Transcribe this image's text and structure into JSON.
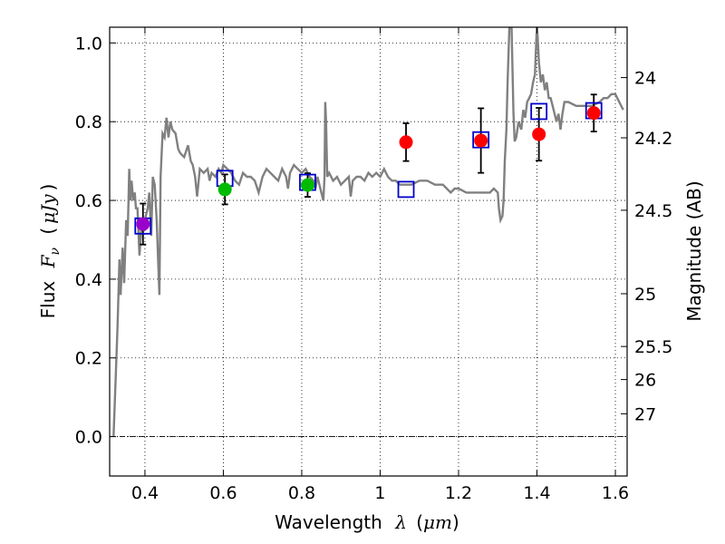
{
  "chart_data": {
    "type": "scatter",
    "title": "",
    "xlabel": {
      "text": "Wavelength",
      "symbol": "λ",
      "open": "(",
      "unit": "μm",
      "close": ")"
    },
    "ylabel": {
      "text": "Flux",
      "symbol": "F",
      "subscript": "ν",
      "open": "(",
      "unit": "μJy",
      "close": ")"
    },
    "y2label": "Magnitude (AB)",
    "xlim": [
      0.31,
      1.63
    ],
    "ylim": [
      -0.1,
      1.04
    ],
    "grid": true,
    "x_ticks": [
      {
        "value": 0.4,
        "label": "0.4"
      },
      {
        "value": 0.6,
        "label": "0.6"
      },
      {
        "value": 0.8,
        "label": "0.8"
      },
      {
        "value": 1.0,
        "label": "1"
      },
      {
        "value": 1.2,
        "label": "1.2"
      },
      {
        "value": 1.4,
        "label": "1.4"
      },
      {
        "value": 1.6,
        "label": "1.6"
      }
    ],
    "y_ticks": [
      {
        "value": 0.0,
        "label": "0.0"
      },
      {
        "value": 0.2,
        "label": "0.2"
      },
      {
        "value": 0.4,
        "label": "0.4"
      },
      {
        "value": 0.6,
        "label": "0.6"
      },
      {
        "value": 0.8,
        "label": "0.8"
      },
      {
        "value": 1.0,
        "label": "1.0"
      }
    ],
    "mag_ticks": [
      {
        "label": "24",
        "flux": 0.912
      },
      {
        "label": "24.2",
        "flux": 0.759
      },
      {
        "label": "24.5",
        "flux": 0.575
      },
      {
        "label": "25",
        "flux": 0.363
      },
      {
        "label": "25.5",
        "flux": 0.229
      },
      {
        "label": "26",
        "flux": 0.145
      },
      {
        "label": "27",
        "flux": 0.058
      }
    ],
    "zero_line": 0.0,
    "model_spectrum": {
      "color": "#808080",
      "points": [
        [
          0.32,
          0.0
        ],
        [
          0.33,
          0.28
        ],
        [
          0.335,
          0.45
        ],
        [
          0.338,
          0.36
        ],
        [
          0.343,
          0.48
        ],
        [
          0.347,
          0.39
        ],
        [
          0.352,
          0.55
        ],
        [
          0.356,
          0.51
        ],
        [
          0.36,
          0.68
        ],
        [
          0.363,
          0.6
        ],
        [
          0.366,
          0.65
        ],
        [
          0.37,
          0.6
        ],
        [
          0.374,
          0.62
        ],
        [
          0.377,
          0.58
        ],
        [
          0.381,
          0.58
        ],
        [
          0.386,
          0.46
        ],
        [
          0.39,
          0.52
        ],
        [
          0.394,
          0.54
        ],
        [
          0.398,
          0.53
        ],
        [
          0.402,
          0.56
        ],
        [
          0.407,
          0.58
        ],
        [
          0.411,
          0.62
        ],
        [
          0.416,
          0.51
        ],
        [
          0.42,
          0.66
        ],
        [
          0.425,
          0.64
        ],
        [
          0.43,
          0.55
        ],
        [
          0.434,
          0.44
        ],
        [
          0.437,
          0.36
        ],
        [
          0.44,
          0.66
        ],
        [
          0.445,
          0.77
        ],
        [
          0.45,
          0.76
        ],
        [
          0.455,
          0.81
        ],
        [
          0.46,
          0.76
        ],
        [
          0.465,
          0.8
        ],
        [
          0.47,
          0.78
        ],
        [
          0.478,
          0.77
        ],
        [
          0.485,
          0.73
        ],
        [
          0.49,
          0.72
        ],
        [
          0.5,
          0.71
        ],
        [
          0.51,
          0.74
        ],
        [
          0.517,
          0.7
        ],
        [
          0.522,
          0.69
        ],
        [
          0.528,
          0.66
        ],
        [
          0.533,
          0.61
        ],
        [
          0.54,
          0.68
        ],
        [
          0.55,
          0.67
        ],
        [
          0.56,
          0.68
        ],
        [
          0.565,
          0.65
        ],
        [
          0.57,
          0.67
        ],
        [
          0.58,
          0.66
        ],
        [
          0.588,
          0.68
        ],
        [
          0.595,
          0.67
        ],
        [
          0.6,
          0.69
        ],
        [
          0.61,
          0.68
        ],
        [
          0.62,
          0.67
        ],
        [
          0.63,
          0.65
        ],
        [
          0.64,
          0.64
        ],
        [
          0.65,
          0.67
        ],
        [
          0.66,
          0.66
        ],
        [
          0.67,
          0.66
        ],
        [
          0.68,
          0.65
        ],
        [
          0.69,
          0.62
        ],
        [
          0.7,
          0.66
        ],
        [
          0.71,
          0.68
        ],
        [
          0.72,
          0.67
        ],
        [
          0.73,
          0.66
        ],
        [
          0.74,
          0.65
        ],
        [
          0.75,
          0.68
        ],
        [
          0.76,
          0.66
        ],
        [
          0.765,
          0.63
        ],
        [
          0.77,
          0.67
        ],
        [
          0.78,
          0.69
        ],
        [
          0.79,
          0.68
        ],
        [
          0.8,
          0.67
        ],
        [
          0.81,
          0.68
        ],
        [
          0.82,
          0.66
        ],
        [
          0.83,
          0.65
        ],
        [
          0.835,
          0.63
        ],
        [
          0.84,
          0.66
        ],
        [
          0.85,
          0.62
        ],
        [
          0.855,
          0.6
        ],
        [
          0.858,
          0.66
        ],
        [
          0.86,
          0.85
        ],
        [
          0.862,
          0.8
        ],
        [
          0.865,
          0.66
        ],
        [
          0.87,
          0.67
        ],
        [
          0.88,
          0.65
        ],
        [
          0.89,
          0.66
        ],
        [
          0.9,
          0.64
        ],
        [
          0.91,
          0.65
        ],
        [
          0.92,
          0.66
        ],
        [
          0.925,
          0.61
        ],
        [
          0.93,
          0.65
        ],
        [
          0.94,
          0.66
        ],
        [
          0.95,
          0.66
        ],
        [
          0.96,
          0.65
        ],
        [
          0.97,
          0.67
        ],
        [
          0.98,
          0.66
        ],
        [
          0.99,
          0.67
        ],
        [
          1.0,
          0.66
        ],
        [
          1.01,
          0.68
        ],
        [
          1.02,
          0.66
        ],
        [
          1.03,
          0.65
        ],
        [
          1.04,
          0.65
        ],
        [
          1.05,
          0.64
        ],
        [
          1.06,
          0.64
        ],
        [
          1.08,
          0.64
        ],
        [
          1.1,
          0.65
        ],
        [
          1.12,
          0.65
        ],
        [
          1.14,
          0.64
        ],
        [
          1.16,
          0.64
        ],
        [
          1.17,
          0.63
        ],
        [
          1.18,
          0.62
        ],
        [
          1.19,
          0.63
        ],
        [
          1.2,
          0.63
        ],
        [
          1.22,
          0.62
        ],
        [
          1.24,
          0.62
        ],
        [
          1.26,
          0.62
        ],
        [
          1.28,
          0.62
        ],
        [
          1.29,
          0.63
        ],
        [
          1.3,
          0.62
        ],
        [
          1.303,
          0.58
        ],
        [
          1.307,
          0.55
        ],
        [
          1.312,
          0.56
        ],
        [
          1.315,
          0.6
        ],
        [
          1.318,
          0.7
        ],
        [
          1.322,
          0.78
        ],
        [
          1.325,
          0.9
        ],
        [
          1.33,
          1.05
        ],
        [
          1.335,
          1.05
        ],
        [
          1.34,
          0.82
        ],
        [
          1.343,
          0.75
        ],
        [
          1.347,
          0.76
        ],
        [
          1.353,
          0.8
        ],
        [
          1.36,
          0.78
        ],
        [
          1.365,
          0.83
        ],
        [
          1.37,
          0.81
        ],
        [
          1.375,
          0.85
        ],
        [
          1.38,
          0.86
        ],
        [
          1.385,
          0.87
        ],
        [
          1.39,
          0.9
        ],
        [
          1.395,
          0.92
        ],
        [
          1.4,
          1.05
        ],
        [
          1.405,
          0.95
        ],
        [
          1.41,
          0.9
        ],
        [
          1.415,
          0.92
        ],
        [
          1.42,
          0.88
        ],
        [
          1.425,
          0.9
        ],
        [
          1.43,
          0.86
        ],
        [
          1.435,
          0.86
        ],
        [
          1.44,
          0.84
        ],
        [
          1.45,
          0.8
        ],
        [
          1.455,
          0.82
        ],
        [
          1.46,
          0.78
        ],
        [
          1.465,
          0.82
        ],
        [
          1.47,
          0.85
        ],
        [
          1.48,
          0.85
        ],
        [
          1.5,
          0.84
        ],
        [
          1.52,
          0.84
        ],
        [
          1.54,
          0.84
        ],
        [
          1.56,
          0.85
        ],
        [
          1.57,
          0.86
        ],
        [
          1.58,
          0.86
        ],
        [
          1.59,
          0.87
        ],
        [
          1.6,
          0.87
        ],
        [
          1.61,
          0.85
        ],
        [
          1.62,
          0.83
        ]
      ]
    },
    "series": [
      {
        "name": "model photometry",
        "marker": "open-square",
        "color": "#0000cc",
        "points": [
          [
            0.395,
            0.535
          ],
          [
            0.604,
            0.656
          ],
          [
            0.815,
            0.646
          ],
          [
            1.066,
            0.628
          ],
          [
            1.257,
            0.754
          ],
          [
            1.405,
            0.826
          ],
          [
            1.545,
            0.828
          ]
        ]
      },
      {
        "name": "violet band",
        "marker": "circle",
        "color": "#9900cc",
        "points": [
          [
            0.395,
            0.54
          ]
        ],
        "errors": [
          0.052
        ]
      },
      {
        "name": "green bands",
        "marker": "circle",
        "color": "#00bb00",
        "points": [
          [
            0.604,
            0.628
          ],
          [
            0.815,
            0.639
          ]
        ],
        "errors": [
          0.038,
          0.03
        ]
      },
      {
        "name": "red bands",
        "marker": "circle",
        "color": "#ff0000",
        "points": [
          [
            1.066,
            0.748
          ],
          [
            1.257,
            0.752
          ],
          [
            1.405,
            0.768
          ],
          [
            1.545,
            0.822
          ]
        ],
        "errors": [
          0.048,
          0.082,
          0.067,
          0.047
        ]
      }
    ]
  }
}
